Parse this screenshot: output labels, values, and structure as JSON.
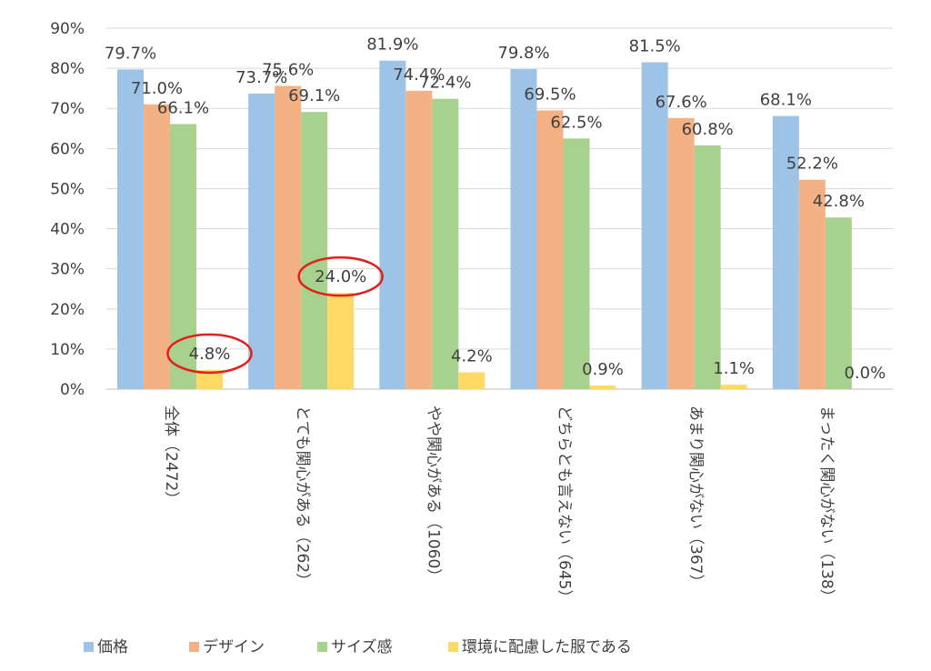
{
  "chart_data": {
    "type": "bar",
    "categories": [
      "全体（2472）",
      "とても関心がある（262）",
      "やや関心がある（1060）",
      "どちらとも言えない（645）",
      "あまり関心がない（367）",
      "まったく関心がない（138）"
    ],
    "series": [
      {
        "name": "価格",
        "color": "#9dc3e6",
        "values": [
          79.7,
          73.7,
          81.9,
          79.8,
          81.5,
          68.1
        ]
      },
      {
        "name": "デザイン",
        "color": "#f4b183",
        "values": [
          71.0,
          75.6,
          74.4,
          69.5,
          67.6,
          52.2
        ]
      },
      {
        "name": "サイズ感",
        "color": "#a9d18e",
        "values": [
          66.1,
          69.1,
          72.4,
          62.5,
          60.8,
          42.8
        ]
      },
      {
        "name": "環境に配慮した服である",
        "color": "#ffd966",
        "values": [
          4.8,
          24.0,
          4.2,
          0.9,
          1.1,
          0.0
        ]
      }
    ],
    "data_labels": [
      [
        "79.7%",
        "73.7%",
        "81.9%",
        "79.8%",
        "81.5%",
        "68.1%"
      ],
      [
        "71.0%",
        "75.6%",
        "74.4%",
        "69.5%",
        "67.6%",
        "52.2%"
      ],
      [
        "66.1%",
        "69.1%",
        "72.4%",
        "62.5%",
        "60.8%",
        "42.8%"
      ],
      [
        "4.8%",
        "24.0%",
        "4.2%",
        "0.9%",
        "1.1%",
        "0.0%"
      ]
    ],
    "y_ticks": [
      "0%",
      "10%",
      "20%",
      "30%",
      "40%",
      "50%",
      "60%",
      "70%",
      "80%",
      "90%"
    ],
    "ylim": [
      0,
      90
    ],
    "grid": true,
    "legend_position": "bottom",
    "highlighted_labels": [
      {
        "series": 3,
        "category": 0
      },
      {
        "series": 3,
        "category": 1
      }
    ],
    "highlight_color": "#e0201b"
  }
}
